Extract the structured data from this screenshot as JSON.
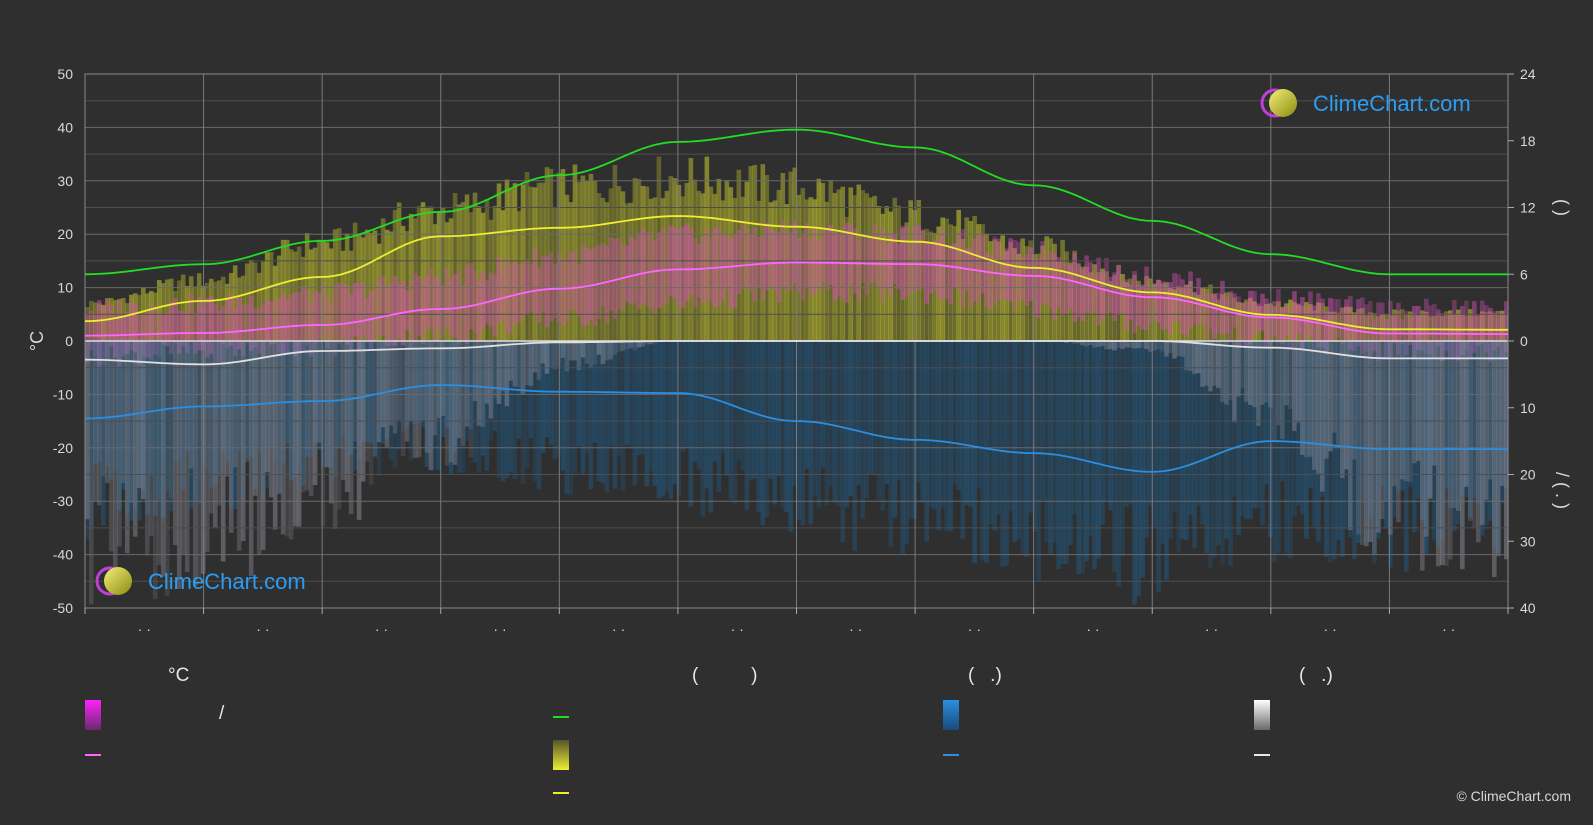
{
  "chart_data": {
    "type": "line",
    "ylabel_left": "°C",
    "ylabel_right_top": "(    )",
    "ylabel_right_bottom": "/    ( . )",
    "ylim_left": [
      -50,
      50
    ],
    "ylim_right_top": [
      0,
      24
    ],
    "ylim_right_bottom": [
      0,
      40
    ],
    "yticks_left": [
      "50",
      "40",
      "30",
      "20",
      "10",
      "0",
      "-10",
      "-20",
      "-30",
      "-40",
      "-50"
    ],
    "yticks_right_top": [
      "24",
      "18",
      "12",
      "6",
      "0"
    ],
    "yticks_right_bottom": [
      "10",
      "20",
      "30",
      "40"
    ],
    "x_tick_labels": [
      "· ·",
      "· ·",
      "· ·",
      "· ·",
      "· ·",
      "· ·",
      "· ·",
      "· ·",
      "· ·",
      "· ·",
      "· ·",
      "· ·"
    ],
    "months": 12,
    "grid": true,
    "series": [
      {
        "key": "daylight",
        "color": "#22dd22",
        "axis": "right_top",
        "values": [
          6.0,
          6.9,
          9.0,
          11.6,
          14.9,
          17.9,
          19.0,
          17.4,
          14.0,
          10.8,
          7.8,
          6.0,
          6.0
        ]
      },
      {
        "key": "sunshine",
        "color": "#eeee33",
        "axis": "left",
        "values": [
          3.7,
          7.5,
          12.0,
          19.6,
          21.2,
          23.4,
          21.4,
          18.6,
          13.7,
          9.1,
          4.9,
          2.2,
          2.1
        ]
      },
      {
        "key": "temp_mean",
        "color": "#ff66ff",
        "axis": "left",
        "values": [
          1.0,
          1.5,
          3.0,
          6.0,
          9.8,
          13.4,
          14.7,
          14.4,
          12.2,
          8.2,
          4.4,
          1.4,
          1.3
        ]
      },
      {
        "key": "snow",
        "color": "#e0e0e0",
        "axis": "right_bottom",
        "values": [
          2.8,
          3.5,
          1.5,
          1.1,
          0.2,
          0.0,
          0.0,
          0.0,
          0.0,
          0.0,
          1.0,
          2.6,
          2.6
        ]
      },
      {
        "key": "rain",
        "color": "#2a8fe0",
        "axis": "right_bottom",
        "values": [
          11.6,
          9.8,
          9.0,
          6.6,
          7.6,
          7.8,
          12.0,
          14.8,
          16.8,
          19.6,
          15.0,
          16.2,
          16.2
        ]
      }
    ],
    "sunshine_band_max": [
      8,
      13,
      21,
      28,
      33,
      35,
      33,
      27,
      20,
      13,
      8,
      6,
      6
    ],
    "temp_band_max": [
      6,
      7,
      9,
      12,
      16,
      20,
      21,
      20,
      17,
      12,
      8,
      6,
      6
    ],
    "temp_band_min": [
      -3,
      -2,
      -1,
      1,
      4,
      7,
      9,
      9,
      6,
      3,
      0,
      -2,
      -2
    ],
    "rain_band_depth": [
      30,
      26,
      22,
      20,
      24,
      26,
      30,
      34,
      36,
      40,
      34,
      36,
      36
    ],
    "snow_band_depth": [
      40,
      38,
      30,
      20,
      5,
      0,
      0,
      0,
      0,
      2,
      15,
      35,
      38
    ]
  },
  "logo": {
    "text": "ClimeChart.com"
  },
  "legend": {
    "temp_header": "°C",
    "sun_header": "(          )",
    "rain_header": "(   .)",
    "snow_header": "(   .)",
    "temp_range_text": "/"
  },
  "colors": {
    "background": "#2f2f2f",
    "grid": "#5a5a5a",
    "temp": "#ff55ff",
    "sun": "#eeee33",
    "daylight": "#22dd22",
    "rain": "#2a8fe0",
    "snow": "#e8e8e8"
  },
  "copyright": "© ClimeChart.com"
}
